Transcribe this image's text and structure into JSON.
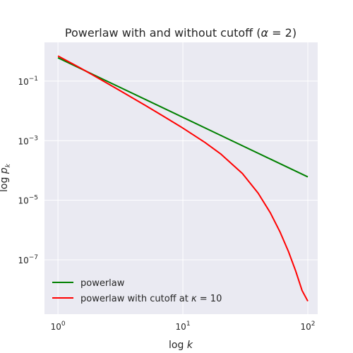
{
  "chart_data": {
    "type": "line",
    "title_main": "Powerlaw with and without cutoff (",
    "title_var": "α",
    "title_rest": " = 2)",
    "xlabel_prefix": "log ",
    "xlabel_var": "k",
    "ylabel_prefix": "log ",
    "ylabel_var": "p",
    "ylabel_sub": "k",
    "xscale": "log",
    "yscale": "log",
    "xlim": [
      0.78,
      120
    ],
    "ylim": [
      1.5e-09,
      2.0
    ],
    "grid": true,
    "legend_position": "lower-left",
    "x_ticks": [
      {
        "value": 1,
        "base": "10",
        "exp": "0"
      },
      {
        "value": 10,
        "base": "10",
        "exp": "1"
      },
      {
        "value": 100,
        "base": "10",
        "exp": "2"
      }
    ],
    "y_ticks": [
      {
        "value": 0.1,
        "base": "10",
        "exp": "−1"
      },
      {
        "value": 0.001,
        "base": "10",
        "exp": "−3"
      },
      {
        "value": 1e-05,
        "base": "10",
        "exp": "−5"
      },
      {
        "value": 1e-07,
        "base": "10",
        "exp": "−7"
      }
    ],
    "series": [
      {
        "name": "powerlaw",
        "legend_prefix": "powerlaw",
        "legend_var": "",
        "legend_rest": "",
        "color": "#008000",
        "x": [
          1,
          2,
          5,
          10,
          20,
          50,
          100
        ],
        "y": [
          0.608,
          0.152,
          0.0243,
          0.00608,
          0.00152,
          0.000243,
          6.08e-05
        ]
      },
      {
        "name": "powerlaw with cutoff at κ = 10",
        "legend_prefix": "powerlaw with cutoff at ",
        "legend_var": "κ",
        "legend_rest": " = 10",
        "color": "#ff0000",
        "x": [
          1,
          1.5,
          2,
          3,
          5,
          7,
          10,
          15,
          20,
          30,
          40,
          50,
          60,
          70,
          80,
          90,
          100
        ],
        "y": [
          0.7,
          0.28,
          0.142,
          0.0535,
          0.0153,
          0.00658,
          0.00265,
          0.000878,
          0.000364,
          7.85e-05,
          1.74e-05,
          3.86e-06,
          8.55e-07,
          1.9e-07,
          4.21e-08,
          9.3e-09,
          4.1e-09
        ]
      }
    ]
  }
}
